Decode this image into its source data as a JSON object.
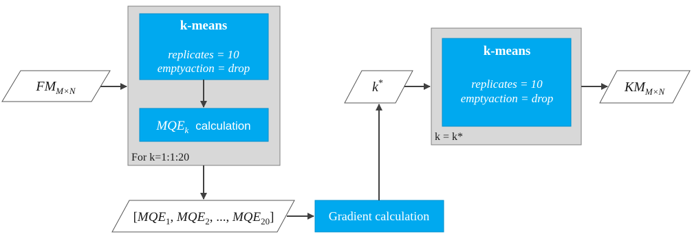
{
  "colors": {
    "panel_fill": "#d8d8d8",
    "panel_stroke": "#7f7f7f",
    "block_fill": "#00a9ef",
    "block_stroke": "#0090cc",
    "arrow": "#404040",
    "text_dark": "#1a1a1a",
    "text_white": "#ffffff"
  },
  "left_panel": {
    "loop_label": "For k=1:1:20",
    "kmeans_block": {
      "title": "k-means",
      "param1": "replicates = 10",
      "param2": "emptyaction = drop"
    },
    "mqe_block": {
      "symbol": "MQE",
      "subscript": "k",
      "label": "calculation"
    }
  },
  "right_panel": {
    "loop_label": "k = k*",
    "kmeans_block": {
      "title": "k-means",
      "param1": "replicates = 10",
      "param2": "emptyaction = drop"
    }
  },
  "io": {
    "input": {
      "symbol": "FM",
      "subscript": "M×N"
    },
    "k_star": {
      "symbol": "k",
      "superscript": "*"
    },
    "output": {
      "symbol": "KM",
      "subscript": "M×N"
    },
    "mqe_list": {
      "open": "[",
      "item_symbol": "MQE",
      "sub1": "1",
      "sub2": "2",
      "sub_last": "20",
      "sep": ", ",
      "ellipsis": "...",
      "close": "]"
    }
  },
  "gradient_block": {
    "label": "Gradient calculation"
  }
}
